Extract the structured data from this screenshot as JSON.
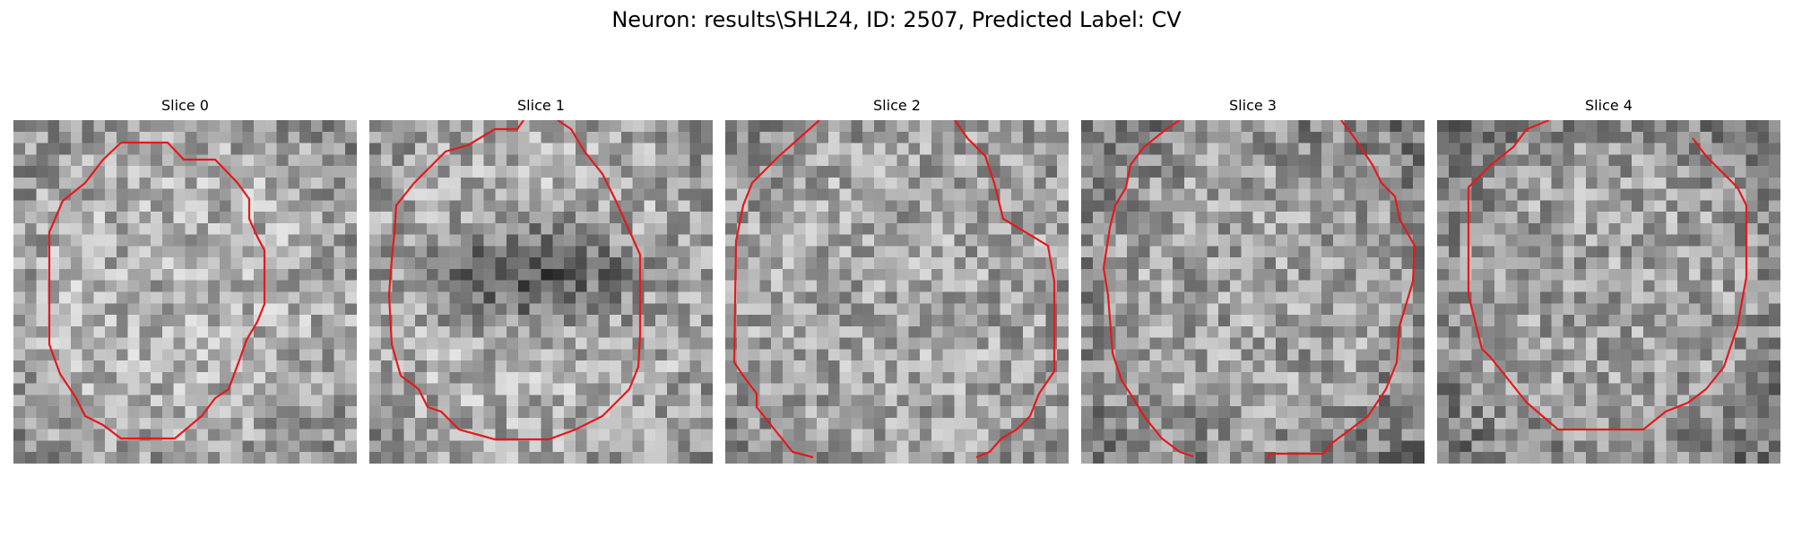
{
  "title": "Neuron: results\\SHL24, ID: 2507, Predicted Label: CV",
  "contour_color": "#e41a1c",
  "panels": [
    {
      "title": "Slice 0",
      "seed": 11,
      "pattern": "bright_center"
    },
    {
      "title": "Slice 1",
      "seed": 23,
      "pattern": "dark_band"
    },
    {
      "title": "Slice 2",
      "seed": 37,
      "pattern": "uniform"
    },
    {
      "title": "Slice 3",
      "seed": 41,
      "pattern": "dark_edges"
    },
    {
      "title": "Slice 4",
      "seed": 53,
      "pattern": "dark_edges"
    }
  ]
}
